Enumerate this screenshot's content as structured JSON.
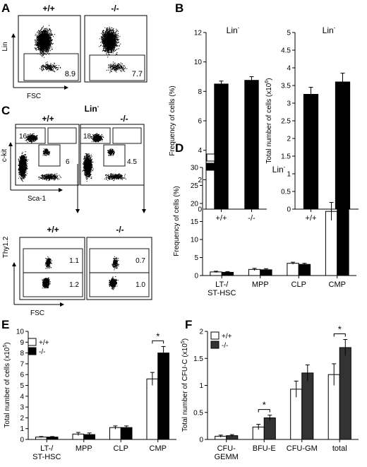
{
  "panels": {
    "A": {
      "letter": "A",
      "genotypes": [
        "+/+",
        "-/-"
      ],
      "y_axis": "Lin",
      "x_axis": "FSC",
      "gate_values": [
        "8.9",
        "7.7"
      ]
    },
    "C": {
      "letter": "C",
      "title": "Lin",
      "genotypes": [
        "+/+",
        "-/-"
      ],
      "top_y_axis": "c-kit",
      "top_x_axis": "Sca-1",
      "top_gates": [
        [
          "16",
          "6"
        ],
        [
          "18",
          "4.5"
        ]
      ],
      "bottom_genotypes": [
        "+/+",
        "-/-"
      ],
      "bottom_y_axis": "Thy1.2",
      "bottom_x_axis": "FSC",
      "bottom_gates": [
        [
          "1.1",
          "1.2"
        ],
        [
          "0.7",
          "1.0"
        ]
      ]
    }
  },
  "chart_data": [
    {
      "id": "B1",
      "letter": "B",
      "type": "bar",
      "title": "Lin",
      "title_sup": "-",
      "ylabel": "Frequency of cells (%)",
      "categories": [
        "+/+",
        "-/-"
      ],
      "values": [
        8.5,
        8.75
      ],
      "errors": [
        0.2,
        0.25
      ],
      "ylim": [
        0,
        12
      ],
      "yticks": [
        "0",
        "2",
        "4",
        "6",
        "8",
        "10",
        "12"
      ],
      "fills": [
        "#000000",
        "#000000"
      ]
    },
    {
      "id": "B2",
      "letter": "",
      "type": "bar",
      "title": "Lin",
      "title_sup": "-",
      "ylabel": "Total number of cells (x10",
      "ylabel_sup": "6",
      "ylabel_end": ")",
      "categories": [
        "+/+",
        "-/-"
      ],
      "values": [
        3.25,
        3.6
      ],
      "errors": [
        0.2,
        0.25
      ],
      "ylim": [
        0,
        5
      ],
      "yticks": [
        "0",
        "0.5",
        "1",
        "1.5",
        "2",
        "2.5",
        "3",
        "3.5",
        "4",
        "4.5",
        "5"
      ],
      "fills": [
        "#000000",
        "#000000"
      ]
    },
    {
      "id": "D",
      "letter": "D",
      "type": "bar",
      "title": "Lin",
      "title_sup": "-",
      "ylabel": "Frequency of cells (%)",
      "categories": [
        "LT-/\nST-HSC",
        "MPP",
        "CLP",
        "CMP"
      ],
      "series": [
        {
          "name": "+/+",
          "color": "#ffffff",
          "values": [
            1.0,
            1.7,
            3.4,
            17.8
          ],
          "errors": [
            0.2,
            0.3,
            0.3,
            2.5
          ]
        },
        {
          "name": "-/-",
          "color": "#000000",
          "values": [
            0.9,
            1.6,
            3.1,
            22.0
          ],
          "errors": [
            0.2,
            0.3,
            0.3,
            2.5
          ]
        }
      ],
      "ylim": [
        0,
        30
      ],
      "yticks": [
        "0",
        "5",
        "10",
        "15",
        "20",
        "25",
        "30"
      ]
    },
    {
      "id": "E",
      "letter": "E",
      "type": "bar",
      "ylabel": "Total number of cells (x10",
      "ylabel_sup": "5",
      "ylabel_end": ")",
      "categories": [
        "LT-/\nST-HSC",
        "MPP",
        "CLP",
        "CMP"
      ],
      "series": [
        {
          "name": "+/+",
          "color": "#ffffff",
          "values": [
            0.22,
            0.5,
            1.1,
            5.6
          ],
          "errors": [
            0.05,
            0.15,
            0.15,
            0.6
          ]
        },
        {
          "name": "-/-",
          "color": "#000000",
          "values": [
            0.22,
            0.45,
            1.1,
            8.0
          ],
          "errors": [
            0.05,
            0.15,
            0.15,
            0.6
          ]
        }
      ],
      "ylim": [
        0,
        10
      ],
      "yticks": [
        "0",
        "1",
        "2",
        "3",
        "4",
        "5",
        "6",
        "7",
        "8",
        "9",
        "10"
      ],
      "significance": [
        {
          "category": 3,
          "label": "*"
        }
      ]
    },
    {
      "id": "F",
      "letter": "F",
      "type": "bar",
      "ylabel": "Total number of CFU-C (x10",
      "ylabel_sup": "5",
      "ylabel_end": ")",
      "categories": [
        "CFU-\nGEMM",
        "BFU-E",
        "CFU-GM",
        "total"
      ],
      "series": [
        {
          "name": "+/+",
          "color": "#ffffff",
          "values": [
            0.06,
            0.23,
            0.93,
            1.2
          ],
          "errors": [
            0.02,
            0.05,
            0.15,
            0.2
          ]
        },
        {
          "name": "-/-",
          "color": "#333333",
          "values": [
            0.07,
            0.4,
            1.23,
            1.7
          ],
          "errors": [
            0.02,
            0.05,
            0.15,
            0.15
          ]
        }
      ],
      "ylim": [
        0,
        2
      ],
      "yticks": [
        "0",
        "0.5",
        "1",
        "1.5",
        "2"
      ],
      "significance": [
        {
          "category": 1,
          "label": "*"
        },
        {
          "category": 3,
          "label": "*"
        }
      ]
    }
  ]
}
